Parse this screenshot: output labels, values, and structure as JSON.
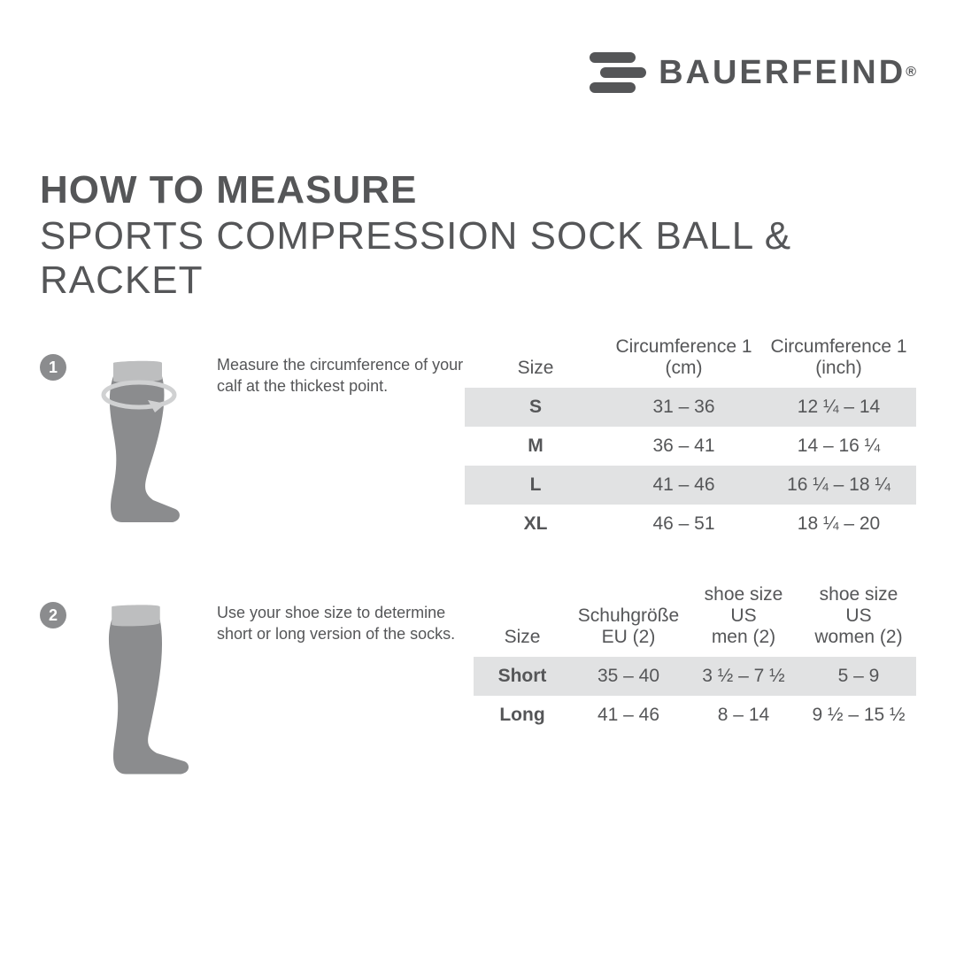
{
  "brand": {
    "name": "BAUERFEIND",
    "registered": "®"
  },
  "heading": {
    "line1": "HOW TO MEASURE",
    "line2": "SPORTS COMPRESSION SOCK BALL & RACKET"
  },
  "colors": {
    "text": "#555658",
    "badge_bg": "#8b8c8e",
    "row_shade": "#e1e2e3",
    "leg_fill": "#8b8c8e",
    "leg_cuff": "#bdbebf",
    "arrow": "#d0d1d2",
    "background": "#ffffff"
  },
  "sections": [
    {
      "badge": "1",
      "instruction": "Measure the circumference of your calf at the thickest point.",
      "table": {
        "columns": [
          "Size",
          "Circumference 1\n(cm)",
          "Circumference 1\n(inch)"
        ],
        "rows": [
          {
            "shade": true,
            "cells": [
              "S",
              "31 – 36",
              "12 ¼ – 14"
            ]
          },
          {
            "shade": false,
            "cells": [
              "M",
              "36 – 41",
              "14 – 16 ¼"
            ]
          },
          {
            "shade": true,
            "cells": [
              "L",
              "41 – 46",
              "16 ¼ – 18 ¼"
            ]
          },
          {
            "shade": false,
            "cells": [
              "XL",
              "46 – 51",
              "18 ¼ – 20"
            ]
          }
        ]
      }
    },
    {
      "badge": "2",
      "instruction": "Use your shoe size to determine short or long version of the socks.",
      "table": {
        "columns": [
          "Size",
          "Schuhgröße\nEU (2)",
          "shoe size US\nmen (2)",
          "shoe size US\nwomen (2)"
        ],
        "rows": [
          {
            "shade": true,
            "cells": [
              "Short",
              "35 – 40",
              "3 ½ – 7 ½",
              "5 – 9"
            ]
          },
          {
            "shade": false,
            "cells": [
              "Long",
              "41 – 46",
              "8 – 14",
              "9 ½ – 15 ½"
            ]
          }
        ]
      }
    }
  ]
}
